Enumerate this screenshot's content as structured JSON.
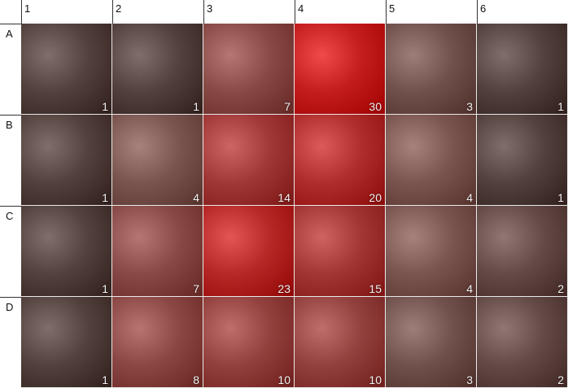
{
  "chart_data": {
    "type": "heatmap",
    "columns": [
      "1",
      "2",
      "3",
      "4",
      "5",
      "6"
    ],
    "rows": [
      "A",
      "B",
      "C",
      "D"
    ],
    "values": [
      [
        1,
        1,
        7,
        30,
        3,
        1
      ],
      [
        1,
        4,
        14,
        20,
        4,
        1
      ],
      [
        1,
        7,
        23,
        15,
        4,
        2
      ],
      [
        1,
        8,
        10,
        10,
        3,
        2
      ]
    ],
    "colors": {
      "low": "#2b2b2b",
      "high": "#c41d1d",
      "gridline": "#e6e6e6",
      "value_text": "#f2f2f2"
    }
  }
}
